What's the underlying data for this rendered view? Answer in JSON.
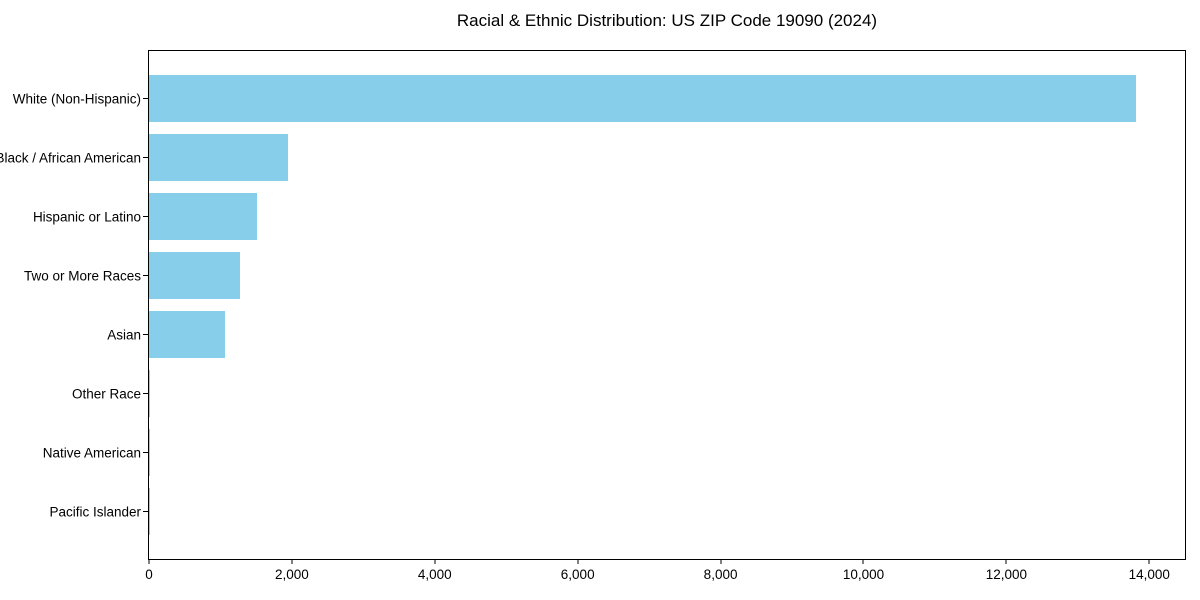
{
  "chart_data": {
    "type": "bar",
    "orientation": "horizontal",
    "title": "Racial & Ethnic Distribution: US ZIP Code 19090 (2024)",
    "categories": [
      "White (Non-Hispanic)",
      "Black / African American",
      "Hispanic or Latino",
      "Two or More Races",
      "Asian",
      "Other Race",
      "Native American",
      "Pacific Islander"
    ],
    "values": [
      13820,
      1950,
      1510,
      1270,
      1070,
      20,
      8,
      4
    ],
    "bar_color": "#87CEEB",
    "axis_color": "#000000",
    "text_color": "#000000",
    "xlabel": "",
    "ylabel": "",
    "xlim": [
      0,
      14500
    ],
    "x_ticks": [
      0,
      2000,
      4000,
      6000,
      8000,
      10000,
      12000,
      14000
    ],
    "x_tick_labels": [
      "0",
      "2,000",
      "4,000",
      "6,000",
      "8,000",
      "10,000",
      "12,000",
      "14,000"
    ],
    "grid": false,
    "legend": false
  }
}
